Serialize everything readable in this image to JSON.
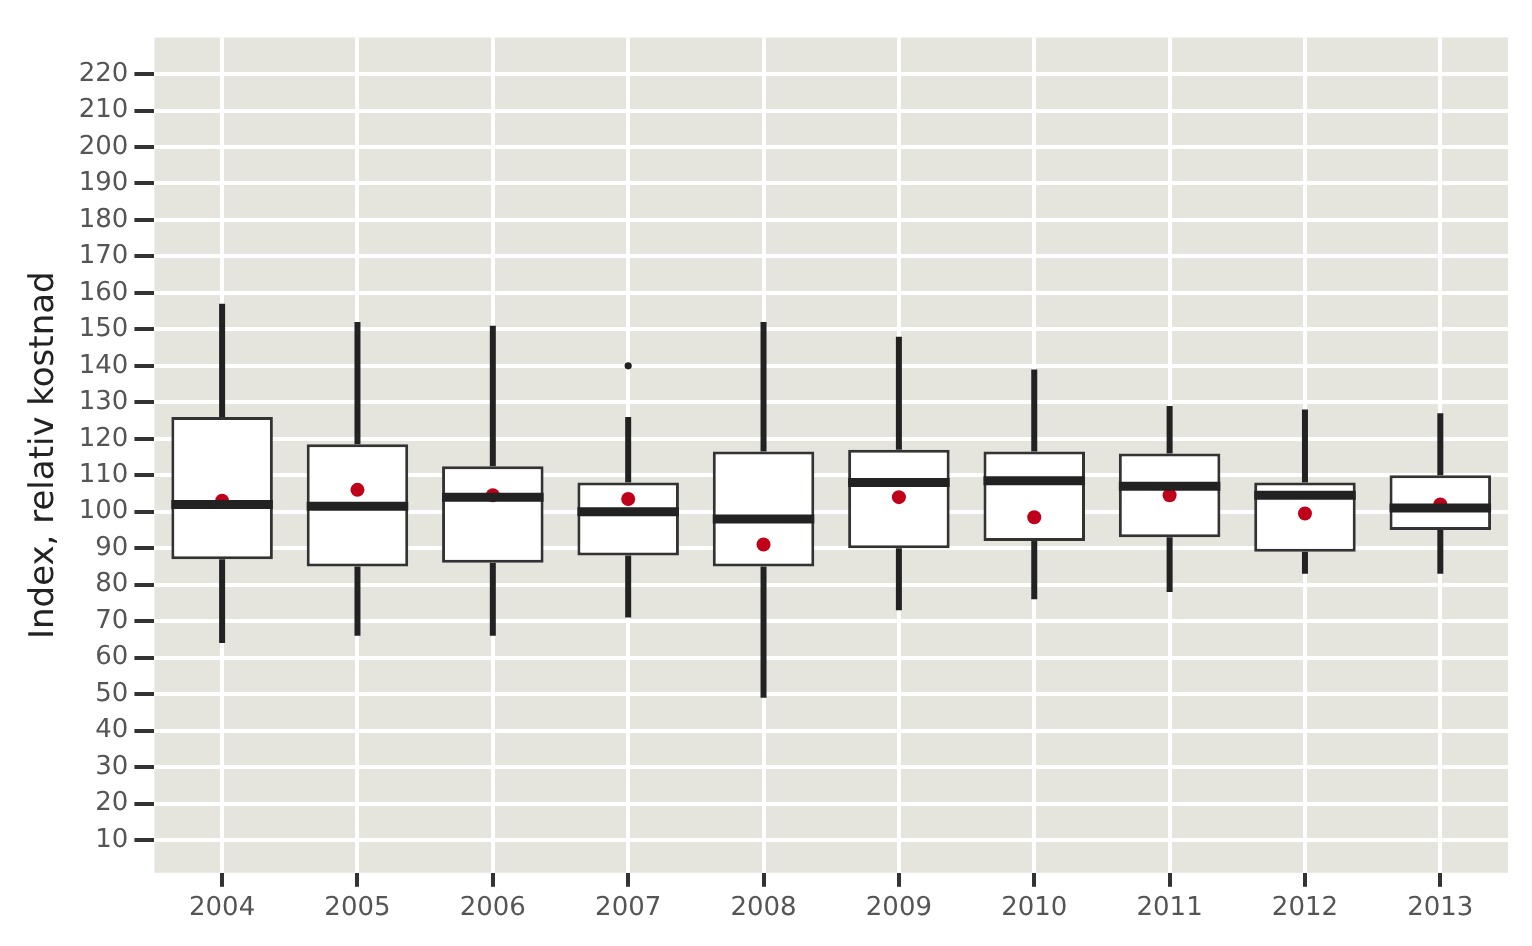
{
  "chart_data": {
    "type": "box",
    "ylabel": "Index, relativ kostnad",
    "categories": [
      "2004",
      "2005",
      "2006",
      "2007",
      "2008",
      "2009",
      "2010",
      "2011",
      "2012",
      "2013"
    ],
    "boxes": [
      {
        "low": 64,
        "q1": 87,
        "median": 102,
        "q3": 126,
        "high": 157,
        "mean": 103
      },
      {
        "low": 66,
        "q1": 85,
        "median": 101.5,
        "q3": 118.5,
        "high": 152,
        "mean": 106
      },
      {
        "low": 66,
        "q1": 86,
        "median": 104,
        "q3": 112.5,
        "high": 151,
        "mean": 104.5
      },
      {
        "low": 71,
        "q1": 88,
        "median": 100,
        "q3": 108,
        "high": 126,
        "mean": 103.5,
        "outliers": [
          140
        ]
      },
      {
        "low": 49,
        "q1": 85,
        "median": 98,
        "q3": 116.5,
        "high": 152,
        "mean": 91
      },
      {
        "low": 73,
        "q1": 90,
        "median": 108,
        "q3": 117,
        "high": 148,
        "mean": 104
      },
      {
        "low": 76,
        "q1": 92,
        "median": 108.5,
        "q3": 116.5,
        "high": 139,
        "mean": 98.5
      },
      {
        "low": 78,
        "q1": 93,
        "median": 107,
        "q3": 116,
        "high": 129,
        "mean": 104.5
      },
      {
        "low": 83,
        "q1": 89,
        "median": 104.5,
        "q3": 108,
        "high": 128,
        "mean": 99.5
      },
      {
        "low": 83,
        "q1": 95,
        "median": 101,
        "q3": 110,
        "high": 127,
        "mean": 102
      }
    ],
    "ylim": [
      1,
      230
    ],
    "yticks": [
      10,
      20,
      30,
      40,
      50,
      60,
      70,
      80,
      90,
      100,
      110,
      120,
      130,
      140,
      150,
      160,
      170,
      180,
      190,
      200,
      210,
      220
    ],
    "grid": true,
    "legend": false
  }
}
